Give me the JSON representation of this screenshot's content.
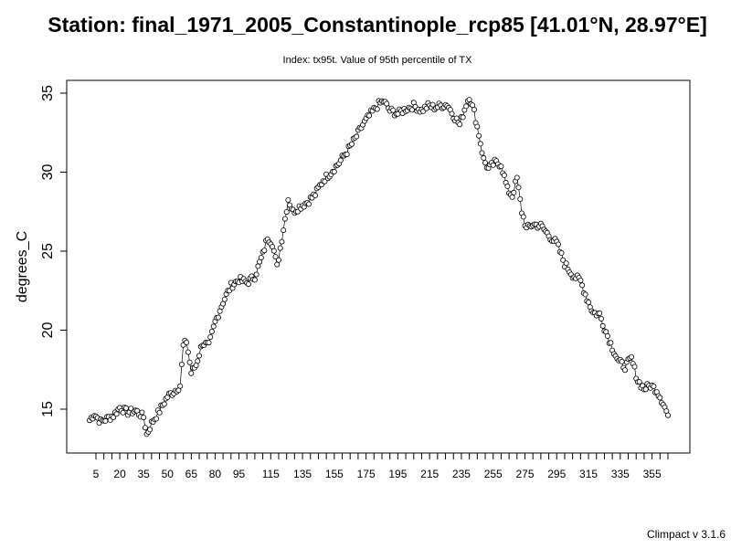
{
  "title": "Station: final_1971_2005_Constantinople_rcp85 [41.01°N, 28.97°E]",
  "subtitle": "Index: tx95t. Value of 95th percentile of TX",
  "footer": "Climpact v 3.1.6",
  "chart_data": {
    "type": "scatter",
    "title": "Station: final_1971_2005_Constantinople_rcp85 [41.01°N, 28.97°E]",
    "subtitle": "Index: tx95t. Value of 95th percentile of TX",
    "xlabel": "",
    "ylabel": "degrees_C",
    "xlim": [
      1,
      365
    ],
    "ylim": [
      13.0,
      35.0
    ],
    "x_ticks": [
      5,
      20,
      35,
      50,
      65,
      80,
      95,
      115,
      135,
      155,
      175,
      195,
      215,
      235,
      255,
      275,
      295,
      315,
      335,
      355
    ],
    "y_ticks": [
      15,
      20,
      25,
      30,
      35
    ],
    "line_style": "overplotted points joined by line segments",
    "grid": false,
    "series": [
      {
        "anchors_x": [
          1,
          4,
          8,
          12,
          16,
          20,
          25,
          30,
          35,
          37,
          40,
          45,
          50,
          55,
          58,
          60,
          62,
          65,
          68,
          72,
          76,
          80,
          85,
          90,
          95,
          100,
          105,
          110,
          113,
          116,
          119,
          122,
          126,
          129,
          133,
          138,
          143,
          148,
          153,
          158,
          163,
          168,
          173,
          178,
          183,
          186,
          190,
          195,
          200,
          205,
          210,
          214,
          218,
          222,
          226,
          230,
          234,
          238,
          240,
          243,
          246,
          249,
          252,
          256,
          260,
          264,
          267,
          270,
          273,
          276,
          280,
          285,
          290,
          295,
          300,
          305,
          310,
          314,
          318,
          322,
          326,
          330,
          334,
          338,
          342,
          346,
          350,
          354,
          358,
          362,
          365
        ],
        "anchors_y": [
          14.3,
          14.7,
          14.2,
          14.4,
          14.6,
          15.1,
          14.8,
          14.9,
          14.5,
          13.4,
          14.1,
          14.9,
          15.8,
          16.2,
          16.5,
          19.0,
          19.3,
          17.3,
          17.8,
          19.2,
          19.0,
          20.5,
          21.8,
          22.8,
          23.2,
          23.0,
          23.4,
          24.8,
          25.9,
          25.5,
          24.0,
          25.8,
          28.3,
          27.5,
          27.8,
          28.1,
          28.6,
          29.5,
          30.0,
          30.6,
          31.3,
          32.1,
          33.0,
          33.7,
          34.3,
          34.5,
          33.9,
          33.7,
          34.0,
          34.2,
          33.9,
          34.2,
          34.1,
          34.2,
          34.3,
          33.6,
          33.0,
          34.3,
          34.8,
          33.8,
          32.4,
          30.8,
          30.2,
          30.6,
          30.5,
          28.9,
          28.5,
          29.6,
          27.5,
          26.4,
          26.7,
          26.6,
          26.0,
          25.5,
          24.2,
          23.5,
          23.1,
          22.0,
          21.1,
          21.0,
          19.9,
          18.9,
          18.0,
          17.7,
          18.2,
          16.8,
          16.3,
          16.5,
          16.2,
          15.4,
          14.6
        ]
      }
    ]
  }
}
